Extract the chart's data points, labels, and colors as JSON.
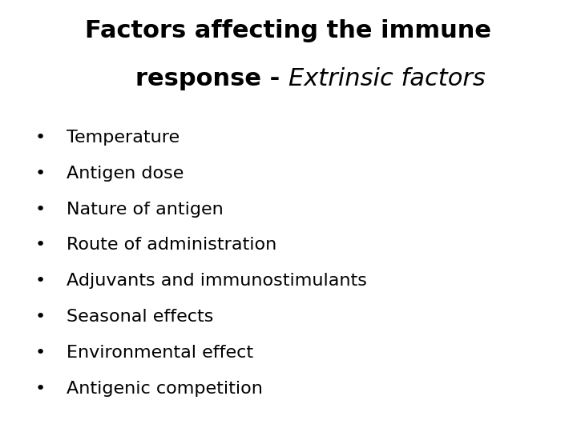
{
  "title_line1": "Factors affecting the immune",
  "title_line2_bold": "response - ",
  "title_line2_italic": "Extrinsic factors",
  "bullet_items": [
    "Temperature",
    "Antigen dose",
    "Nature of antigen",
    "Route of administration",
    "Adjuvants and immunostimulants",
    "Seasonal effects",
    "Environmental effect",
    "Antigenic competition"
  ],
  "background_color": "#ffffff",
  "text_color": "#000000",
  "title_fontsize": 22,
  "bullet_fontsize": 16,
  "bullet_symbol": "•"
}
